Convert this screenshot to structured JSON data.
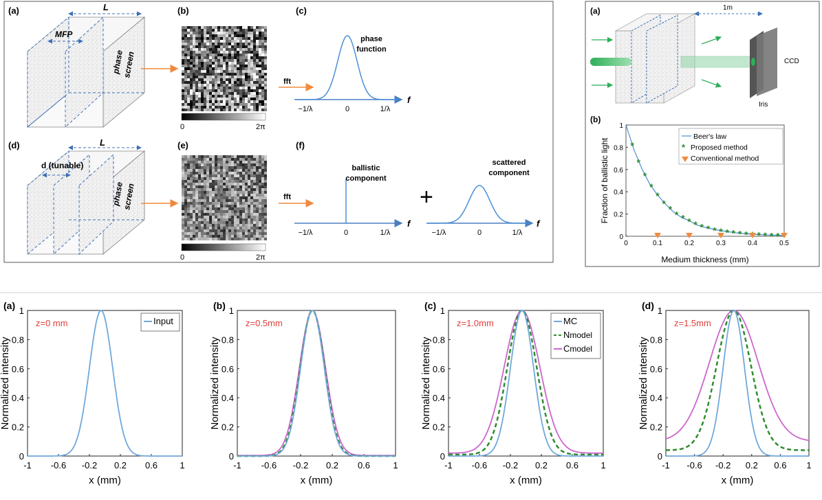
{
  "colors": {
    "blue": "#6fa8dc",
    "green": "#2e8b2e",
    "magenta": "#cc66cc",
    "orange": "#f08a3c",
    "dashblue": "#3d6fb4",
    "axisblue": "#4a7fc0"
  },
  "panelA": {
    "labels": [
      "(a)",
      "(b)",
      "(c)",
      "(d)",
      "(e)",
      "(f)"
    ],
    "box1": {
      "L": "L",
      "mfp": "MFP",
      "screen_line1": "phase",
      "screen_line2": "screen"
    },
    "box2": {
      "L": "L",
      "d": "d (tunable)",
      "screen_line1": "phase",
      "screen_line2": "screen"
    },
    "cbar1": {
      "min": "0",
      "max": "2π"
    },
    "cbar2": {
      "min": "0",
      "max": "2π"
    },
    "fft1": "fft",
    "fft2": "fft",
    "c": {
      "title_line1": "phase",
      "title_line2": "function",
      "ticks": [
        "−1/λ",
        "0",
        "1/λ"
      ],
      "axis": "f"
    },
    "f_ballistic": {
      "title_line1": "ballistic",
      "title_line2": "component",
      "ticks": [
        "−1/λ",
        "0",
        "1/λ"
      ],
      "axis": "f"
    },
    "plus": "+",
    "f_scattered": {
      "title_line1": "scattered",
      "title_line2": "component",
      "ticks": [
        "−1/λ",
        "0",
        "1/λ"
      ],
      "axis": "f"
    }
  },
  "panelB": {
    "a_label": "(a)",
    "dist": "1m",
    "ccd": "CCD",
    "iris": "Iris",
    "b_label": "(b)",
    "ylabel": "Fraction of ballistic light",
    "xlabel": "Medium thickness (mm)",
    "legend": [
      "Beer's law",
      "Proposed method",
      "Conventional method"
    ]
  },
  "chart_data": [
    {
      "type": "line",
      "label": "(b)",
      "title": "",
      "xlabel": "Medium thickness (mm)",
      "ylabel": "Fraction of ballistic light",
      "xlim": [
        0,
        0.5
      ],
      "ylim": [
        0,
        1
      ],
      "xticks": [
        "0",
        "0.1",
        "0.2",
        "0.3",
        "0.4",
        "0.5"
      ],
      "yticks": [
        "0",
        "0.2",
        "0.4",
        "0.6",
        "0.8",
        "1"
      ],
      "legend_position": "top-right",
      "series": [
        {
          "name": "Beer's law",
          "style": "line",
          "x": [
            0,
            0.025,
            0.05,
            0.075,
            0.1,
            0.125,
            0.15,
            0.175,
            0.2,
            0.225,
            0.25,
            0.275,
            0.3,
            0.325,
            0.35,
            0.375,
            0.4,
            0.425,
            0.45,
            0.475,
            0.5
          ],
          "y": [
            1,
            0.78,
            0.61,
            0.47,
            0.37,
            0.29,
            0.22,
            0.17,
            0.14,
            0.1,
            0.08,
            0.065,
            0.05,
            0.04,
            0.03,
            0.024,
            0.018,
            0.014,
            0.011,
            0.009,
            0.007
          ]
        },
        {
          "name": "Proposed method",
          "style": "star",
          "x": [
            0.02,
            0.04,
            0.06,
            0.08,
            0.1,
            0.12,
            0.14,
            0.16,
            0.18,
            0.2,
            0.22,
            0.24,
            0.26,
            0.28,
            0.3,
            0.32,
            0.34,
            0.36,
            0.38,
            0.4,
            0.42,
            0.44,
            0.46,
            0.48,
            0.5
          ],
          "y": [
            0.82,
            0.67,
            0.55,
            0.45,
            0.37,
            0.3,
            0.25,
            0.2,
            0.17,
            0.14,
            0.11,
            0.09,
            0.075,
            0.06,
            0.05,
            0.04,
            0.035,
            0.028,
            0.023,
            0.018,
            0.015,
            0.012,
            0.01,
            0.008,
            0.007
          ]
        },
        {
          "name": "Conventional method",
          "style": "triangle",
          "x": [
            0.1,
            0.2,
            0.3,
            0.4,
            0.5
          ],
          "y": [
            0,
            0,
            0,
            0,
            0
          ]
        }
      ]
    },
    {
      "type": "line",
      "label": "(a)",
      "annotation": "z=0 mm",
      "xlabel": "x (mm)",
      "ylabel": "Normalized intensity",
      "xlim": [
        -1,
        1
      ],
      "ylim": [
        0,
        1
      ],
      "xticks": [
        "-1",
        "-0.6",
        "-0.2",
        "0.2",
        "0.6",
        "1"
      ],
      "yticks": [
        "0",
        "0.2",
        "0.4",
        "0.6",
        "0.8",
        "1"
      ],
      "legend_position": "top-right",
      "series": [
        {
          "name": "Input",
          "kind": "gauss",
          "center": -0.05,
          "sigma": 0.15,
          "floor": 0,
          "style": "solid",
          "color": "#6fa8dc"
        }
      ]
    },
    {
      "type": "line",
      "label": "(b)",
      "annotation": "z=0.5mm",
      "xlabel": "x (mm)",
      "ylabel": "Normalized intensity",
      "xlim": [
        -1,
        1
      ],
      "ylim": [
        0,
        1
      ],
      "xticks": [
        "-1",
        "-0.6",
        "-0.2",
        "0.2",
        "0.6",
        "1"
      ],
      "yticks": [
        "0",
        "0.2",
        "0.4",
        "0.6",
        "0.8",
        "1"
      ],
      "series": [
        {
          "kind": "gauss",
          "center": -0.05,
          "sigma": 0.15,
          "floor": 0,
          "style": "solid",
          "color": "#6fa8dc"
        },
        {
          "kind": "gauss",
          "center": -0.05,
          "sigma": 0.155,
          "floor": 0,
          "style": "dashed",
          "color": "#2e8b2e"
        },
        {
          "kind": "gauss",
          "center": -0.05,
          "sigma": 0.165,
          "floor": 0.004,
          "style": "solid",
          "color": "#cc66cc"
        }
      ]
    },
    {
      "type": "line",
      "label": "(c)",
      "annotation": "z=1.0mm",
      "xlabel": "x (mm)",
      "ylabel": "Normalized intensity",
      "xlim": [
        -1,
        1
      ],
      "ylim": [
        0,
        1
      ],
      "xticks": [
        "-1",
        "-0.6",
        "-0.2",
        "0.2",
        "0.6",
        "1"
      ],
      "yticks": [
        "0",
        "0.2",
        "0.4",
        "0.6",
        "0.8",
        "1"
      ],
      "legend_position": "top-right",
      "series": [
        {
          "name": "MC",
          "kind": "gauss",
          "center": -0.05,
          "sigma": 0.15,
          "floor": 0,
          "style": "solid",
          "color": "#6fa8dc"
        },
        {
          "name": "N",
          "name_sub": "model",
          "kind": "gauss",
          "center": -0.05,
          "sigma": 0.19,
          "floor": 0.01,
          "style": "dashed",
          "color": "#2e8b2e"
        },
        {
          "name": "C",
          "name_sub": "model",
          "kind": "gauss",
          "center": -0.05,
          "sigma": 0.23,
          "floor": 0.02,
          "style": "solid",
          "color": "#cc66cc"
        }
      ]
    },
    {
      "type": "line",
      "label": "(d)",
      "annotation": "z=1.5mm",
      "xlabel": "x (mm)",
      "ylabel": "Normalized intensity",
      "xlim": [
        -1,
        1
      ],
      "ylim": [
        0,
        1
      ],
      "xticks": [
        "-1",
        "-0.6",
        "-0.2",
        "0.2",
        "0.6",
        "1"
      ],
      "yticks": [
        "0",
        "0.2",
        "0.4",
        "0.6",
        "0.8",
        "1"
      ],
      "series": [
        {
          "kind": "gauss",
          "center": -0.05,
          "sigma": 0.15,
          "floor": 0,
          "style": "solid",
          "color": "#6fa8dc"
        },
        {
          "kind": "gauss",
          "center": -0.05,
          "sigma": 0.24,
          "floor": 0.04,
          "style": "dashed",
          "color": "#2e8b2e"
        },
        {
          "kind": "gauss",
          "center": -0.05,
          "sigma": 0.34,
          "floor": 0.1,
          "style": "solid",
          "color": "#cc66cc"
        }
      ]
    }
  ]
}
